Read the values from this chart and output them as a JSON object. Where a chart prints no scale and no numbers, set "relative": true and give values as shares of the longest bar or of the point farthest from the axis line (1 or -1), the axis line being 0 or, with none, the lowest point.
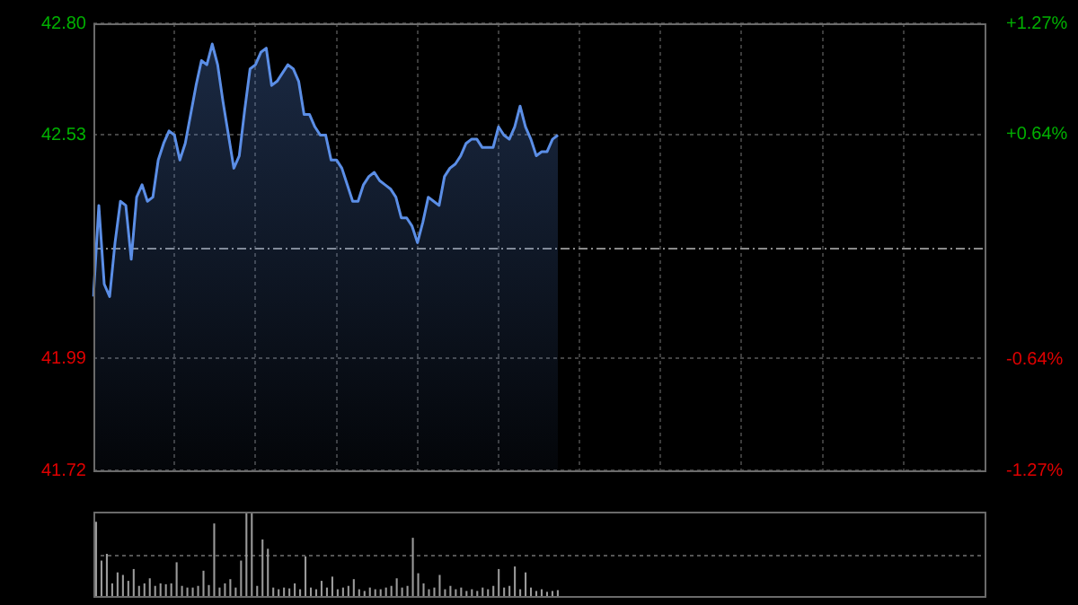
{
  "chart_data": [
    {
      "type": "area",
      "categories": [
        null,
        null,
        null,
        null,
        null,
        null,
        null,
        null,
        null,
        null,
        null,
        null,
        null,
        null,
        null,
        null,
        null,
        null,
        null,
        null,
        null,
        null,
        null,
        null,
        null,
        null,
        null,
        null,
        null,
        null,
        null,
        null,
        null,
        null,
        null,
        null,
        null,
        null,
        null,
        null,
        null,
        null,
        null,
        null,
        null,
        null,
        null,
        null,
        null,
        null,
        null,
        null,
        null,
        null,
        null,
        null,
        null,
        null,
        null,
        null,
        null,
        null,
        null,
        null,
        null,
        null,
        null,
        null,
        null,
        null,
        null,
        null,
        null,
        null,
        null,
        null,
        null,
        null,
        null,
        null,
        null,
        null,
        null,
        null,
        null,
        null,
        null,
        null,
        null,
        null,
        null,
        null,
        null,
        null,
        null,
        null,
        null,
        null,
        null,
        null,
        null,
        null,
        null,
        null,
        null,
        null,
        null,
        null,
        null,
        null,
        null,
        null,
        null,
        null,
        null,
        null,
        null,
        null,
        null,
        null,
        null,
        null,
        null,
        null,
        null,
        null,
        null,
        null,
        null,
        null,
        null,
        null,
        null,
        null,
        null,
        null,
        null,
        null,
        null,
        null,
        null,
        null,
        null,
        null,
        null,
        null,
        null,
        null,
        null,
        null,
        null,
        null,
        null,
        null,
        null,
        null,
        null,
        null,
        null,
        null,
        null,
        null,
        null,
        null,
        null,
        null
      ],
      "series": [
        {
          "color": "#5b8ee6",
          "values": [
            42.14,
            42.36,
            42.17,
            42.14,
            42.27,
            42.37,
            42.36,
            42.23,
            42.38,
            42.41,
            42.37,
            42.38,
            42.47,
            42.51,
            42.54,
            42.53,
            42.47,
            42.51,
            42.58,
            42.65,
            42.71,
            42.7,
            42.75,
            42.7,
            42.61,
            42.53,
            42.45,
            42.48,
            42.59,
            42.69,
            42.7,
            42.73,
            42.74,
            42.65,
            42.66,
            42.68,
            42.7,
            42.69,
            42.66,
            42.58,
            42.58,
            42.55,
            42.53,
            42.53,
            42.47,
            42.47,
            42.45,
            42.41,
            42.37,
            42.37,
            42.41,
            42.43,
            42.44,
            42.42,
            42.41,
            42.4,
            42.38,
            42.33,
            42.33,
            42.31,
            42.27,
            42.32,
            42.38,
            42.37,
            42.36,
            42.43,
            42.45,
            42.46,
            42.48,
            42.51,
            42.52,
            42.52,
            42.5,
            42.5,
            42.5,
            42.55,
            42.53,
            42.52,
            42.55,
            42.6,
            42.55,
            42.52,
            42.48,
            42.49,
            42.49,
            42.52,
            42.53,
            null,
            null,
            null,
            null,
            null,
            null,
            null,
            null,
            null,
            null,
            null,
            null,
            null,
            null,
            null,
            null,
            null,
            null,
            null,
            null,
            null,
            null,
            null,
            null,
            null,
            null,
            null,
            null,
            null,
            null,
            null,
            null,
            null,
            null,
            null,
            null,
            null,
            null,
            null,
            null,
            null,
            null,
            null,
            null,
            null,
            null,
            null,
            null,
            null,
            null,
            null,
            null,
            null,
            null,
            null,
            null,
            null,
            null,
            null,
            null,
            null,
            null,
            null,
            null,
            null,
            null,
            null,
            null,
            null,
            null,
            null,
            null,
            null,
            null,
            null,
            null,
            null,
            null,
            null
          ]
        }
      ],
      "ylim": [
        41.72,
        42.8
      ],
      "yticks": [
        41.72,
        41.99,
        42.53,
        {
          "value": 42.8,
          "label": "42.80"
        }
      ],
      "y2lim": [
        -1.27,
        1.27
      ],
      "y2ticks": [
        {
          "value": -1.27,
          "label": "-1.27%"
        },
        {
          "value": -0.64,
          "label": "-0.64%"
        },
        {
          "value": 0.64,
          "label": "+0.64%"
        },
        {
          "value": 1.27,
          "label": "+1.27%"
        }
      ],
      "ref_lines": [
        {
          "axis": "y",
          "value": 42.26
        }
      ],
      "grid": true
    },
    {
      "type": "bar",
      "relative": true,
      "ref_lines": [
        {
          "axis": "y",
          "value": 0.5,
          "line_style": "dotted",
          "color": "#555555"
        }
      ],
      "categories": [
        null,
        null,
        null,
        null,
        null,
        null,
        null,
        null,
        null,
        null,
        null,
        null,
        null,
        null,
        null,
        null,
        null,
        null,
        null,
        null,
        null,
        null,
        null,
        null,
        null,
        null,
        null,
        null,
        null,
        null,
        null,
        null,
        null,
        null,
        null,
        null,
        null,
        null,
        null,
        null,
        null,
        null,
        null,
        null,
        null,
        null,
        null,
        null,
        null,
        null,
        null,
        null,
        null,
        null,
        null,
        null,
        null,
        null,
        null,
        null,
        null,
        null,
        null,
        null,
        null,
        null,
        null,
        null,
        null,
        null,
        null,
        null,
        null,
        null,
        null,
        null,
        null,
        null,
        null,
        null,
        null,
        null,
        null,
        null,
        null,
        null,
        null,
        null,
        null,
        null,
        null,
        null,
        null,
        null,
        null,
        null,
        null,
        null,
        null,
        null,
        null,
        null,
        null,
        null,
        null,
        null,
        null,
        null,
        null,
        null,
        null,
        null,
        null,
        null,
        null,
        null,
        null,
        null,
        null,
        null,
        null,
        null,
        null,
        null,
        null,
        null,
        null,
        null,
        null,
        null,
        null,
        null,
        null,
        null,
        null,
        null,
        null,
        null,
        null,
        null,
        null,
        null,
        null,
        null,
        null,
        null,
        null,
        null,
        null,
        null,
        null,
        null,
        null,
        null,
        null,
        null,
        null,
        null,
        null,
        null,
        null,
        null,
        null,
        null,
        null,
        null
      ],
      "series": [
        {
          "color": "#9a9a9a",
          "values": [
            0.88,
            0.42,
            0.5,
            0.15,
            0.28,
            0.25,
            0.18,
            0.32,
            0.12,
            0.15,
            0.21,
            0.12,
            0.15,
            0.14,
            0.15,
            0.4,
            0.12,
            0.1,
            0.1,
            0.12,
            0.3,
            0.13,
            0.86,
            0.1,
            0.15,
            0.2,
            0.1,
            0.42,
            1.0,
            1.0,
            0.12,
            0.67,
            0.56,
            0.1,
            0.08,
            0.1,
            0.09,
            0.15,
            0.08,
            0.47,
            0.1,
            0.08,
            0.18,
            0.1,
            0.23,
            0.08,
            0.1,
            0.12,
            0.2,
            0.08,
            0.06,
            0.1,
            0.08,
            0.08,
            0.1,
            0.12,
            0.21,
            0.1,
            0.12,
            0.69,
            0.27,
            0.15,
            0.08,
            0.1,
            0.25,
            0.08,
            0.12,
            0.08,
            0.1,
            0.06,
            0.08,
            0.06,
            0.1,
            0.08,
            0.12,
            0.32,
            0.1,
            0.12,
            0.35,
            0.08,
            0.28,
            0.1,
            0.06,
            0.08,
            0.05,
            0.06,
            0.07,
            null,
            null,
            null,
            null,
            null,
            null,
            null,
            null,
            null,
            null,
            null,
            null,
            null,
            null,
            null,
            null,
            null,
            null,
            null,
            null,
            null,
            null,
            null,
            null,
            null,
            null,
            null,
            null,
            null,
            null,
            null,
            null,
            null,
            null,
            null,
            null,
            null,
            null,
            null,
            null,
            null,
            null,
            null,
            null,
            null,
            null,
            null,
            null,
            null,
            null,
            null,
            null,
            null,
            null,
            null,
            null,
            null,
            null,
            null,
            null,
            null,
            null,
            null,
            null,
            null,
            null,
            null,
            null,
            null,
            null,
            null,
            null,
            null,
            null,
            null,
            null,
            null,
            null,
            null
          ]
        }
      ]
    }
  ]
}
